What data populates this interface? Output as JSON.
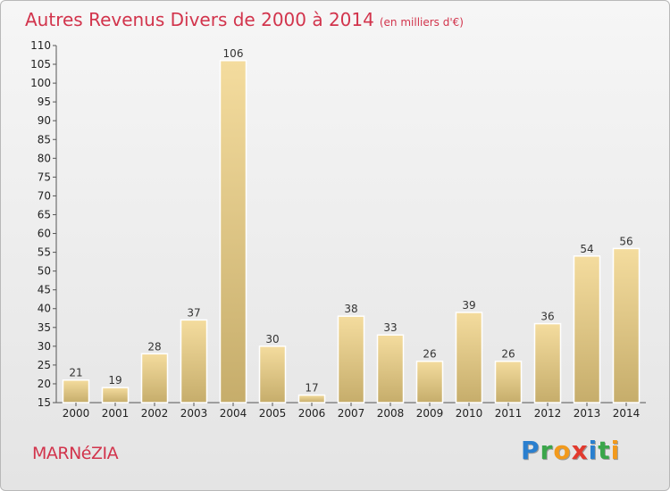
{
  "header": {
    "title": "Autres Revenus Divers de 2000 à 2014",
    "subtitle": "(en milliers d'€)"
  },
  "footer": {
    "commune": "MARNéZIA",
    "logo": [
      {
        "ch": "P",
        "color": "#2a7fcf"
      },
      {
        "ch": "r",
        "color": "#3aa64a"
      },
      {
        "ch": "o",
        "color": "#f29a1d"
      },
      {
        "ch": "x",
        "color": "#e23a2e"
      },
      {
        "ch": "i",
        "color": "#2a7fcf"
      },
      {
        "ch": "t",
        "color": "#3aa64a"
      },
      {
        "ch": "i",
        "color": "#f29a1d"
      }
    ]
  },
  "chart_data": {
    "type": "bar",
    "title": "Autres Revenus Divers de 2000 à 2014",
    "subtitle": "(en milliers d'€)",
    "xlabel": "",
    "ylabel": "",
    "categories": [
      "2000",
      "2001",
      "2002",
      "2003",
      "2004",
      "2005",
      "2006",
      "2007",
      "2008",
      "2009",
      "2010",
      "2011",
      "2012",
      "2013",
      "2014"
    ],
    "values": [
      21,
      19,
      28,
      37,
      106,
      30,
      17,
      38,
      33,
      26,
      39,
      26,
      36,
      54,
      56
    ],
    "ylim": [
      15,
      110
    ],
    "yticks": [
      15,
      20,
      25,
      30,
      35,
      40,
      45,
      50,
      55,
      60,
      65,
      70,
      75,
      80,
      85,
      90,
      95,
      100,
      105,
      110
    ],
    "grid": false,
    "bar_color": "#e6c983",
    "legend": "none"
  }
}
